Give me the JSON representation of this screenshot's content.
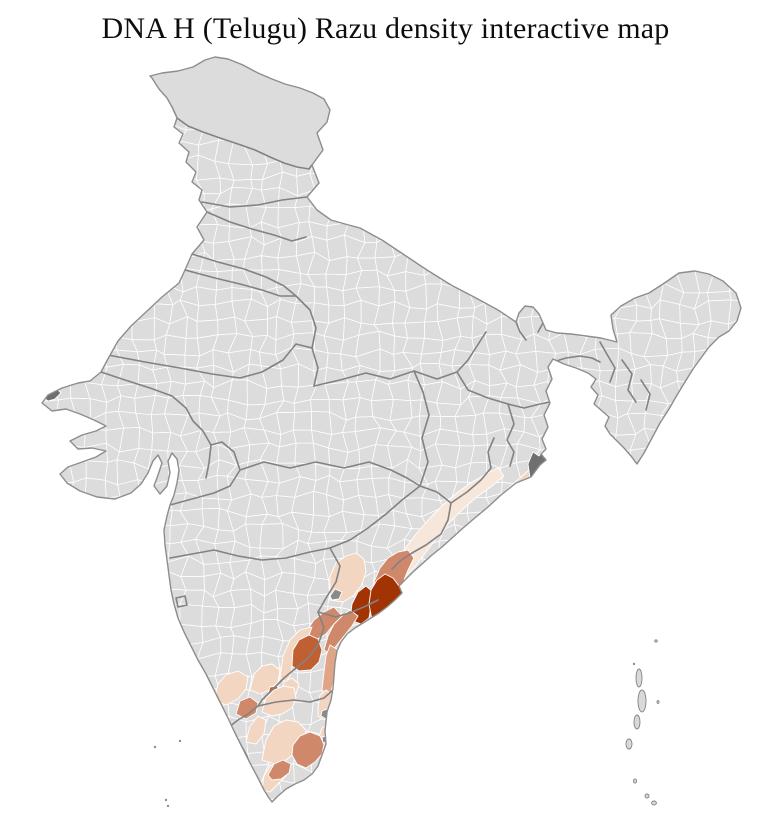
{
  "title": "DNA H (Telugu) Razu density interactive map",
  "map": {
    "name": "India district-level density choropleth",
    "palette": {
      "background": "#ffffff",
      "land": "#dcdcdc",
      "district_border": "#ffffff",
      "state_border": "#828282",
      "coast_outline": "#8d8d8d",
      "city_gray": "#8a8a8a",
      "no_data_dark": "#6f6f6f",
      "island": "#d9d9d9",
      "density_scale": [
        "#f7e7da",
        "#f2d6c2",
        "#e7b799",
        "#e0a586",
        "#d0886a",
        "#c05f31",
        "#a23403"
      ]
    },
    "shaded_regions": [
      {
        "id": "odisha-inland",
        "level": 1
      },
      {
        "id": "odisha-coastal-belt",
        "level": 2
      },
      {
        "id": "north-andhra-coast",
        "level": 3
      },
      {
        "id": "visakhapatnam",
        "level": 5
      },
      {
        "id": "khammam",
        "level": 2
      },
      {
        "id": "godavari-inland-wedge",
        "level": 5
      },
      {
        "id": "west-godavari",
        "level": 7
      },
      {
        "id": "east-godavari",
        "level": 7
      },
      {
        "id": "krishna",
        "level": 5
      },
      {
        "id": "guntur",
        "level": 5
      },
      {
        "id": "kurnool-belt",
        "level": 2
      },
      {
        "id": "kadapa",
        "level": 6
      },
      {
        "id": "nellore-strip",
        "level": 4
      },
      {
        "id": "hyderabad",
        "level": "city_gray"
      },
      {
        "id": "karnataka-west",
        "level": 2
      },
      {
        "id": "karnataka-central",
        "level": 2
      },
      {
        "id": "mandya",
        "level": 5
      },
      {
        "id": "bangalore",
        "level": 6
      },
      {
        "id": "kolar",
        "level": 2
      },
      {
        "id": "tn-northwest",
        "level": 2
      },
      {
        "id": "tn-north-coast",
        "level": 2
      },
      {
        "id": "tn-central",
        "level": 2
      },
      {
        "id": "tn-south",
        "level": 2
      },
      {
        "id": "tn-west",
        "level": 2
      },
      {
        "id": "tn-delta-north",
        "level": 2
      },
      {
        "id": "thanjavur-cluster",
        "level": 5
      },
      {
        "id": "madurai-sivaganga",
        "level": 5
      },
      {
        "id": "chennai",
        "level": "city_gray"
      },
      {
        "id": "pondicherry",
        "level": "city_gray"
      },
      {
        "id": "sundarbans",
        "level": "no_data_dark"
      },
      {
        "id": "kutch-creek",
        "level": "no_data_dark"
      }
    ]
  }
}
